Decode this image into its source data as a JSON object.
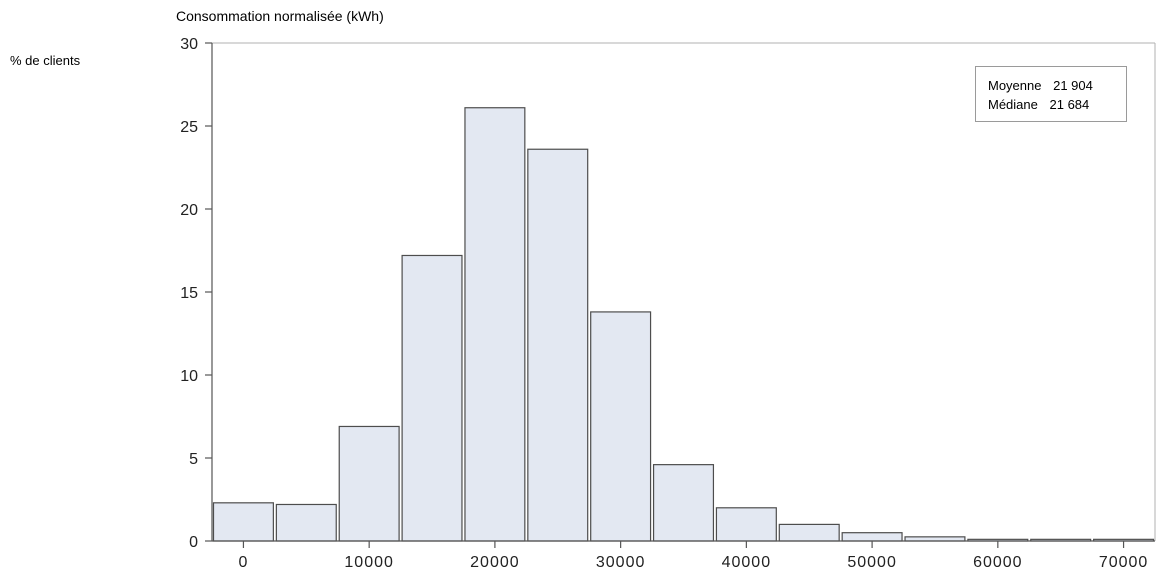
{
  "chart_data": {
    "type": "bar",
    "title": "Consommation normalisée (kWh)",
    "ylabel": "% de clients",
    "xlabel": "",
    "bin_width": 5000,
    "bin_centers": [
      0,
      5000,
      10000,
      15000,
      20000,
      25000,
      30000,
      35000,
      40000,
      45000,
      50000,
      55000,
      60000,
      65000,
      70000
    ],
    "values": [
      2.3,
      2.2,
      6.9,
      17.2,
      26.1,
      23.6,
      13.8,
      4.6,
      2.0,
      1.0,
      0.5,
      0.25,
      0.1,
      0.1,
      0.1
    ],
    "xlim": [
      -2500,
      72500
    ],
    "ylim": [
      0,
      30
    ],
    "xticks": [
      0,
      10000,
      20000,
      30000,
      40000,
      50000,
      60000,
      70000
    ],
    "yticks": [
      0,
      5,
      10,
      15,
      20,
      25,
      30
    ],
    "bar_fill": "#e3e8f2",
    "bar_stroke": "#4d4d4d",
    "grid": false,
    "legend_placement": "top-right",
    "stats": [
      {
        "label": "Moyenne",
        "value": "21 904"
      },
      {
        "label": "Médiane",
        "value": "21 684"
      }
    ]
  }
}
